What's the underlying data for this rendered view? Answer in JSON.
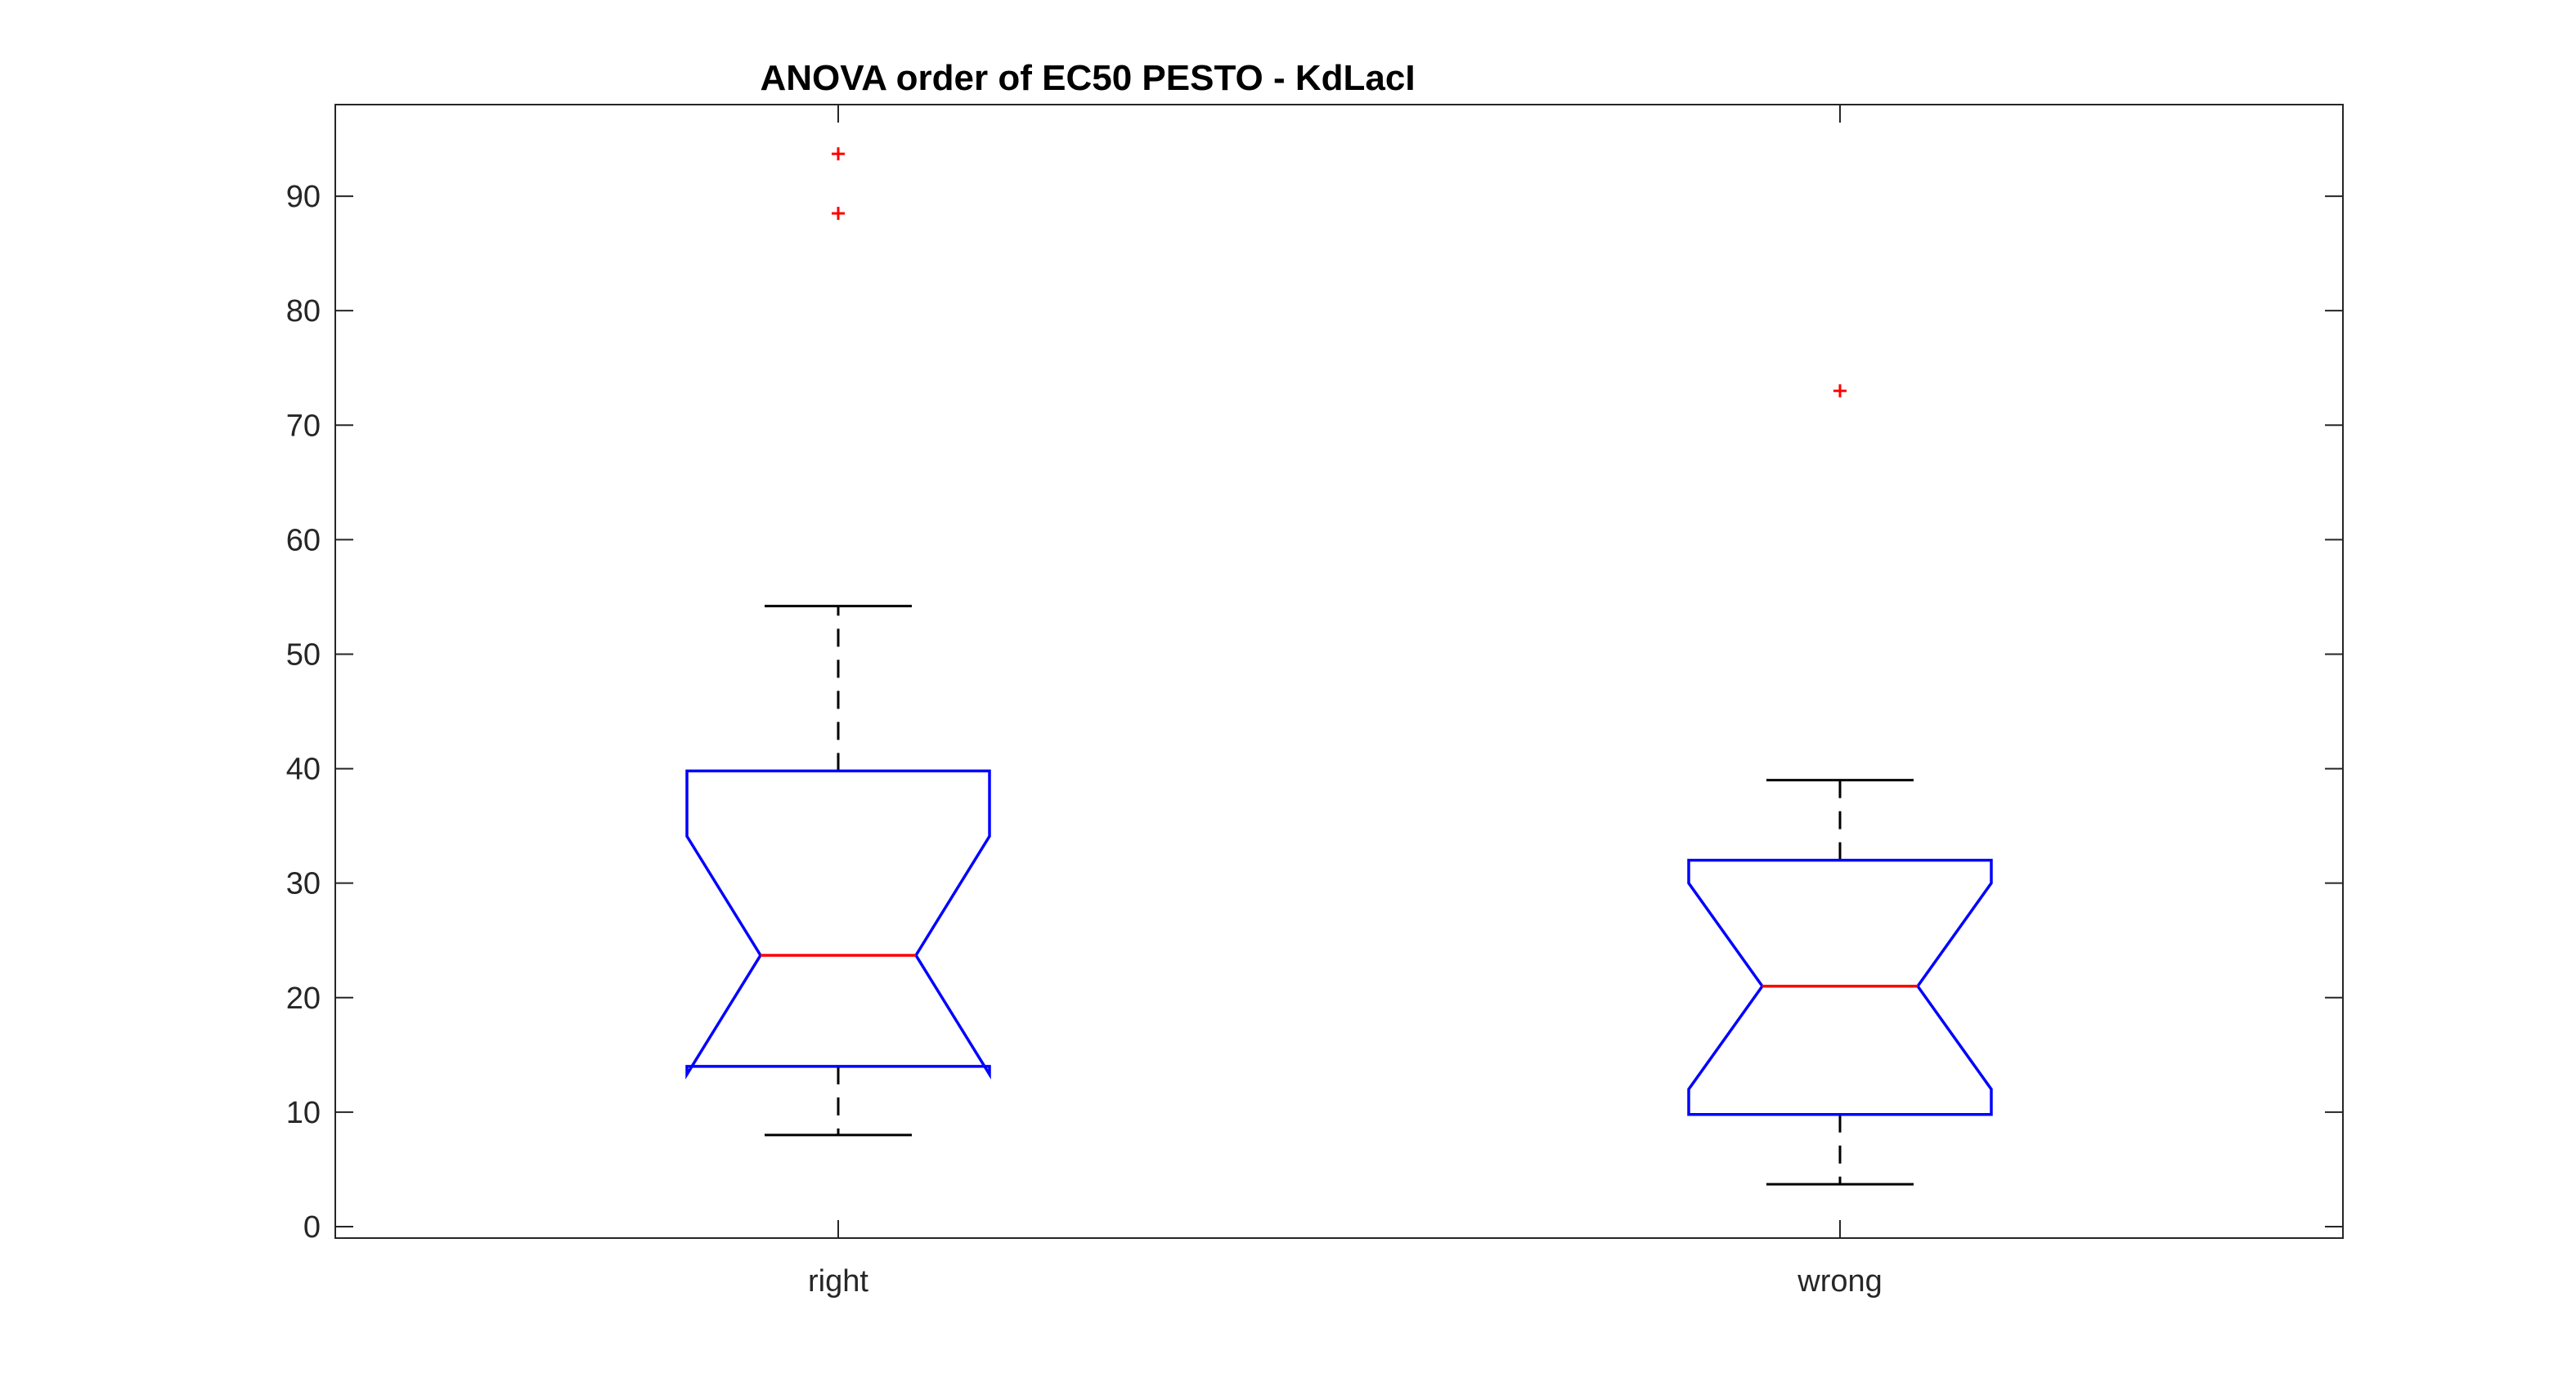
{
  "chart_data": {
    "type": "boxplot",
    "title": "ANOVA order of EC50 PESTO - KdLacI",
    "xlabel": "",
    "ylabel": "",
    "ylim": [
      -1,
      98
    ],
    "yticks": [
      0,
      10,
      20,
      30,
      40,
      50,
      60,
      70,
      80,
      90
    ],
    "grid": false,
    "notched": true,
    "categories": [
      "right",
      "wrong"
    ],
    "boxes": [
      {
        "category": "right",
        "whisker_low": 8,
        "q1": 14,
        "median": 23.7,
        "q3": 39.8,
        "whisker_high": 54.2,
        "notch_low": 13.3,
        "notch_high": 34.1,
        "outliers": [
          88.5,
          93.7
        ]
      },
      {
        "category": "wrong",
        "whisker_low": 3.7,
        "q1": 9.8,
        "median": 21,
        "q3": 32,
        "whisker_high": 39,
        "notch_low": 12,
        "notch_high": 30,
        "outliers": [
          73
        ]
      }
    ],
    "colors": {
      "box": "#0000ff",
      "median": "#ff0000",
      "whisker": "#000000",
      "outlier": "#ff0000",
      "axis": "#262626"
    }
  }
}
